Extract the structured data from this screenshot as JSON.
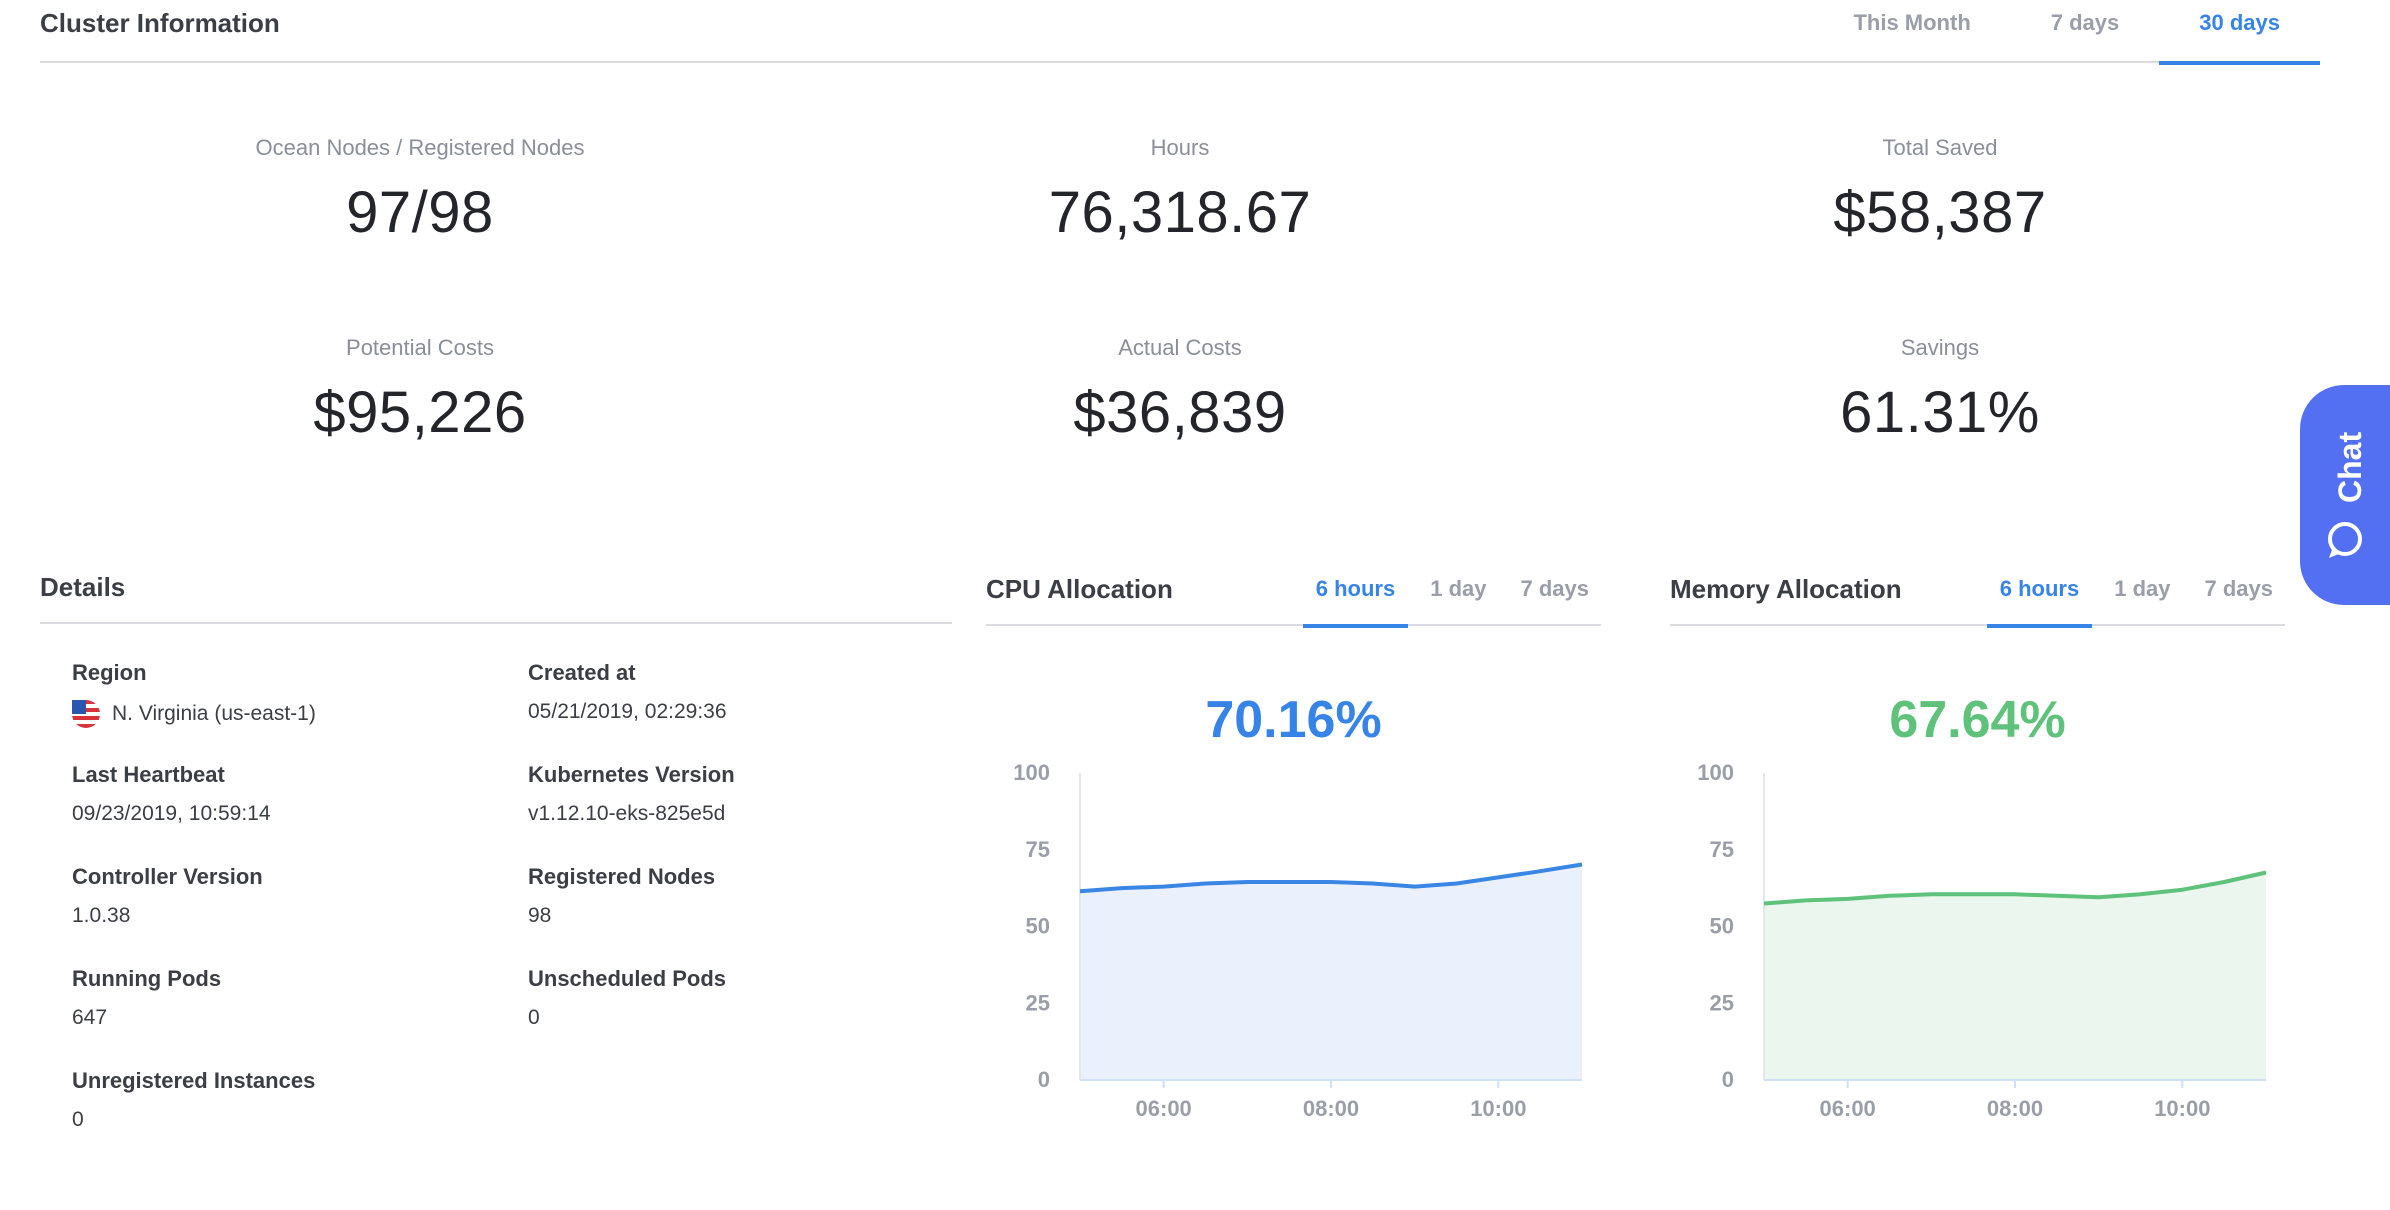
{
  "header": {
    "title": "Cluster Information",
    "tabs": [
      {
        "label": "This Month",
        "active": false
      },
      {
        "label": "7 days",
        "active": false
      },
      {
        "label": "30 days",
        "active": true
      }
    ]
  },
  "stats": {
    "nodes": {
      "label": "Ocean Nodes / Registered Nodes",
      "value": "97/98"
    },
    "hours": {
      "label": "Hours",
      "value": "76,318.67"
    },
    "total_saved": {
      "label": "Total Saved",
      "value": "$58,387"
    },
    "potential_costs": {
      "label": "Potential Costs",
      "value": "$95,226"
    },
    "actual_costs": {
      "label": "Actual Costs",
      "value": "$36,839"
    },
    "savings": {
      "label": "Savings",
      "value": "61.31%"
    }
  },
  "chat": {
    "label": "Chat"
  },
  "details": {
    "title": "Details",
    "region": {
      "label": "Region",
      "value": "N. Virginia (us-east-1)",
      "flag_icon": "us-flag-icon"
    },
    "created_at": {
      "label": "Created at",
      "value": "05/21/2019, 02:29:36"
    },
    "last_heartbeat": {
      "label": "Last Heartbeat",
      "value": "09/23/2019, 10:59:14"
    },
    "kubernetes_version": {
      "label": "Kubernetes Version",
      "value": "v1.12.10-eks-825e5d"
    },
    "controller_version": {
      "label": "Controller Version",
      "value": "1.0.38"
    },
    "registered_nodes": {
      "label": "Registered Nodes",
      "value": "98"
    },
    "running_pods": {
      "label": "Running Pods",
      "value": "647"
    },
    "unscheduled_pods": {
      "label": "Unscheduled Pods",
      "value": "0"
    },
    "unregistered_instances": {
      "label": "Unregistered Instances",
      "value": "0"
    }
  },
  "cpu": {
    "title": "CPU Allocation",
    "tabs": [
      {
        "label": "6 hours",
        "active": true
      },
      {
        "label": "1 day",
        "active": false
      },
      {
        "label": "7 days",
        "active": false
      }
    ],
    "value": "70.16%"
  },
  "memory": {
    "title": "Memory Allocation",
    "tabs": [
      {
        "label": "6 hours",
        "active": true
      },
      {
        "label": "1 day",
        "active": false
      },
      {
        "label": "7 days",
        "active": false
      }
    ],
    "value": "67.64%"
  },
  "colors": {
    "accent": "#3684e8",
    "cpu_line": "#3a86e4",
    "cpu_fill": "#ebf1fc",
    "mem_line": "#5ec27a",
    "mem_fill": "#eaf6ee",
    "chat": "#5470f2"
  },
  "chart_data": [
    {
      "type": "area",
      "y_ticks": [
        "100",
        "75",
        "50",
        "25",
        "0"
      ],
      "x_ticks": [
        "06:00",
        "08:00",
        "10:00"
      ],
      "ylim": [
        0,
        100
      ],
      "x": [
        "05:00",
        "05:30",
        "06:00",
        "06:30",
        "07:00",
        "07:30",
        "08:00",
        "08:30",
        "09:00",
        "09:30",
        "10:00",
        "10:30",
        "11:00"
      ],
      "series": [
        {
          "values": [
            61.5,
            62.5,
            63.0,
            64.0,
            64.5,
            64.5,
            64.5,
            64.0,
            63.0,
            64.0,
            66.0,
            68.0,
            70.2
          ]
        }
      ]
    },
    {
      "type": "area",
      "y_ticks": [
        "100",
        "75",
        "50",
        "25",
        "0"
      ],
      "x_ticks": [
        "06:00",
        "08:00",
        "10:00"
      ],
      "ylim": [
        0,
        100
      ],
      "x": [
        "05:00",
        "05:30",
        "06:00",
        "06:30",
        "07:00",
        "07:30",
        "08:00",
        "08:30",
        "09:00",
        "09:30",
        "10:00",
        "10:30",
        "11:00"
      ],
      "series": [
        {
          "values": [
            57.5,
            58.5,
            59.0,
            60.0,
            60.5,
            60.5,
            60.5,
            60.0,
            59.5,
            60.5,
            62.0,
            64.5,
            67.6
          ]
        }
      ]
    }
  ]
}
